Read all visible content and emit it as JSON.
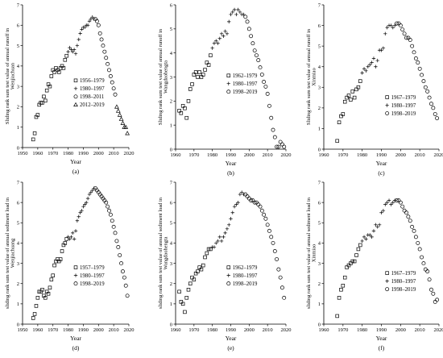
{
  "figure": {
    "panels": [
      {
        "id": "a",
        "letter": "(a)",
        "ylabel_lines": [
          "Sliding rank sum test  value of annual runoff in",
          "Wenjiachuan"
        ],
        "xlabel": "Year",
        "legend": [
          "1956–1979",
          "1980–1997",
          "1998–2011",
          "2012–2019"
        ]
      },
      {
        "id": "b",
        "letter": "(b)",
        "ylabel_lines": [
          "Sliding rank sum test  value of annual runoff in",
          "Wangdaohengta"
        ],
        "xlabel": "Year",
        "legend": [
          "1962–1979",
          "1980–1997",
          "1998–2019"
        ]
      },
      {
        "id": "c",
        "letter": "(c)",
        "ylabel_lines": [
          "Sliding rank sum test  value of annual runoff in",
          "Xinmiao"
        ],
        "xlabel": "Year",
        "legend": [
          "1967–1979",
          "1980–1997",
          "1998–2019"
        ]
      },
      {
        "id": "d",
        "letter": "(d)",
        "ylabel_lines": [
          "sliding rank sum test  value of annual sediment load in",
          "Wenjiachuang"
        ],
        "xlabel": "Year",
        "legend": [
          "1957–1979",
          "1980–1997",
          "1998–2019"
        ]
      },
      {
        "id": "e",
        "letter": "(e)",
        "ylabel_lines": [
          "sliding rank sum test  value of annual sediment load in",
          "Wangdaohengta"
        ],
        "xlabel": "Year",
        "legend": [
          "1962–1979",
          "1980–1997",
          "1998–2019"
        ]
      },
      {
        "id": "f",
        "letter": "(f)",
        "ylabel_lines": [
          "sliding rank sum test  value of annual sediment load in",
          "Xinmiao"
        ],
        "xlabel": "Year",
        "legend": [
          "1967–1979",
          "1980–1997",
          "1998–2019"
        ]
      }
    ]
  },
  "chart_data": [
    {
      "type": "scatter",
      "panel": "a",
      "xlim": [
        1950,
        2020
      ],
      "ylim": [
        0,
        7
      ],
      "xticks": [
        1950,
        1960,
        1970,
        1980,
        1990,
        2000,
        2010,
        2020
      ],
      "yticks": [
        0,
        1,
        2,
        3,
        4,
        5,
        6,
        7
      ],
      "legend_position": "right-middle",
      "series": [
        {
          "name": "1956–1979",
          "marker": "square",
          "x": [
            1957,
            1958,
            1959,
            1960,
            1961,
            1962,
            1963,
            1964,
            1965,
            1966,
            1967,
            1968,
            1969,
            1970,
            1971,
            1972,
            1973,
            1974,
            1975,
            1976,
            1977,
            1978,
            1979
          ],
          "y": [
            0.4,
            0.7,
            1.5,
            1.6,
            2.1,
            2.2,
            2.2,
            2.5,
            2.3,
            2.8,
            3.1,
            3.0,
            3.5,
            3.8,
            3.7,
            3.9,
            3.8,
            3.7,
            3.9,
            4.0,
            3.9,
            4.3,
            4.5
          ]
        },
        {
          "name": "1980–1997",
          "marker": "plus",
          "x": [
            1980,
            1981,
            1982,
            1983,
            1984,
            1985,
            1986,
            1987,
            1988,
            1989,
            1990,
            1991,
            1992,
            1993,
            1994,
            1995,
            1996,
            1997
          ],
          "y": [
            4.7,
            4.9,
            4.8,
            4.7,
            4.8,
            4.6,
            5.0,
            5.3,
            5.6,
            5.8,
            5.9,
            5.9,
            6.0,
            6.0,
            6.2,
            6.3,
            6.4,
            6.3
          ]
        },
        {
          "name": "1998–2011",
          "marker": "circle",
          "x": [
            1998,
            1999,
            2000,
            2001,
            2002,
            2003,
            2004,
            2005,
            2006,
            2007,
            2008,
            2009,
            2010,
            2011
          ],
          "y": [
            6.3,
            6.2,
            6.0,
            5.6,
            5.3,
            5.0,
            4.7,
            4.4,
            4.1,
            3.8,
            3.5,
            3.2,
            2.9,
            2.6
          ]
        },
        {
          "name": "2012–2019",
          "marker": "triangle",
          "x": [
            2012,
            2013,
            2014,
            2015,
            2016,
            2017,
            2018,
            2019
          ],
          "y": [
            2.0,
            1.8,
            1.6,
            1.4,
            1.2,
            1.0,
            1.0,
            0.7
          ]
        }
      ]
    },
    {
      "type": "scatter",
      "panel": "b",
      "xlim": [
        1960,
        2020
      ],
      "ylim": [
        0,
        6
      ],
      "xticks": [
        1960,
        1970,
        1980,
        1990,
        2000,
        2010,
        2020
      ],
      "yticks": [
        0,
        1,
        2,
        3,
        4,
        5,
        6
      ],
      "legend_position": "right-middle",
      "series": [
        {
          "name": "1962–1979",
          "marker": "square",
          "x": [
            1962,
            1963,
            1964,
            1965,
            1966,
            1967,
            1968,
            1969,
            1970,
            1971,
            1972,
            1973,
            1974,
            1975,
            1976,
            1977,
            1978,
            1979
          ],
          "y": [
            1.6,
            1.5,
            1.8,
            1.7,
            1.3,
            2.0,
            2.5,
            2.7,
            3.1,
            3.2,
            3.0,
            3.2,
            3.0,
            3.1,
            3.3,
            3.6,
            3.5,
            3.9
          ]
        },
        {
          "name": "1980–1997",
          "marker": "plus",
          "x": [
            1980,
            1981,
            1982,
            1983,
            1984,
            1985,
            1986,
            1987,
            1988,
            1989,
            1990,
            1991,
            1992,
            1993,
            1994,
            1995,
            1996,
            1997
          ],
          "y": [
            4.2,
            4.4,
            4.5,
            4.4,
            4.6,
            4.8,
            4.7,
            4.9,
            4.8,
            5.3,
            5.6,
            5.7,
            5.8,
            5.6,
            5.8,
            5.7,
            5.6,
            5.6
          ]
        },
        {
          "name": "1998–2019",
          "marker": "circle",
          "x": [
            1998,
            1999,
            2000,
            2001,
            2002,
            2003,
            2004,
            2005,
            2006,
            2007,
            2008,
            2009,
            2010,
            2011,
            2012,
            2013,
            2014,
            2015,
            2016,
            2017,
            2018,
            2019
          ],
          "y": [
            5.5,
            5.3,
            5.0,
            4.7,
            4.4,
            4.1,
            3.9,
            3.7,
            3.4,
            3.1,
            2.8,
            2.6,
            2.3,
            1.8,
            1.3,
            0.8,
            0.5,
            0.1,
            0.1,
            0.3,
            0.2,
            0.1
          ]
        }
      ]
    },
    {
      "type": "scatter",
      "panel": "c",
      "xlim": [
        1960,
        2020
      ],
      "ylim": [
        0,
        7
      ],
      "xticks": [
        1960,
        1970,
        1980,
        1990,
        2000,
        2010,
        2020
      ],
      "yticks": [
        0,
        1,
        2,
        3,
        4,
        5,
        6,
        7
      ],
      "legend_position": "right-middle",
      "series": [
        {
          "name": "1967–1979",
          "marker": "square",
          "x": [
            1967,
            1968,
            1969,
            1970,
            1971,
            1972,
            1973,
            1974,
            1975,
            1976,
            1977,
            1978,
            1979
          ],
          "y": [
            0.4,
            1.3,
            1.6,
            1.7,
            2.3,
            2.5,
            2.6,
            2.4,
            2.8,
            2.5,
            2.9,
            3.0,
            3.3
          ]
        },
        {
          "name": "1980–1997",
          "marker": "plus",
          "x": [
            1980,
            1981,
            1982,
            1983,
            1984,
            1985,
            1986,
            1987,
            1988,
            1989,
            1990,
            1991,
            1992,
            1993,
            1994,
            1995,
            1996,
            1997
          ],
          "y": [
            3.7,
            3.9,
            3.8,
            4.0,
            4.1,
            4.2,
            4.4,
            4.0,
            4.3,
            4.8,
            4.8,
            4.9,
            5.6,
            5.9,
            6.0,
            6.0,
            5.9,
            6.0
          ]
        },
        {
          "name": "1998–2019",
          "marker": "circle",
          "x": [
            1998,
            1999,
            2000,
            2001,
            2002,
            2003,
            2004,
            2005,
            2006,
            2007,
            2008,
            2009,
            2010,
            2011,
            2012,
            2013,
            2014,
            2015,
            2016,
            2017,
            2018,
            2019
          ],
          "y": [
            6.1,
            6.1,
            6.0,
            5.8,
            5.6,
            5.4,
            5.4,
            5.3,
            5.0,
            4.7,
            4.4,
            4.2,
            3.9,
            3.6,
            3.3,
            3.0,
            2.8,
            2.5,
            2.2,
            2.0,
            1.7,
            1.5
          ]
        }
      ]
    },
    {
      "type": "scatter",
      "panel": "d",
      "xlim": [
        1950,
        2020
      ],
      "ylim": [
        0,
        7
      ],
      "xticks": [
        1950,
        1960,
        1970,
        1980,
        1990,
        2000,
        2010,
        2020
      ],
      "yticks": [
        0,
        1,
        2,
        3,
        4,
        5,
        6,
        7
      ],
      "legend_position": "right-middle",
      "series": [
        {
          "name": "1957–1979",
          "marker": "square",
          "x": [
            1957,
            1958,
            1959,
            1960,
            1961,
            1962,
            1963,
            1964,
            1965,
            1966,
            1967,
            1968,
            1969,
            1970,
            1971,
            1972,
            1973,
            1974,
            1975,
            1976,
            1977,
            1978,
            1979
          ],
          "y": [
            0.3,
            0.5,
            0.9,
            1.3,
            1.6,
            1.6,
            1.7,
            1.4,
            1.3,
            1.6,
            1.5,
            1.8,
            2.2,
            2.4,
            2.9,
            3.1,
            3.2,
            3.1,
            3.2,
            3.6,
            3.9,
            4.0,
            4.2
          ]
        },
        {
          "name": "1980–1997",
          "marker": "plus",
          "x": [
            1980,
            1981,
            1982,
            1983,
            1984,
            1985,
            1986,
            1987,
            1988,
            1989,
            1990,
            1991,
            1992,
            1993,
            1994,
            1995,
            1996,
            1997
          ],
          "y": [
            4.3,
            4.2,
            4.3,
            4.5,
            4.2,
            4.6,
            5.1,
            5.3,
            5.5,
            5.6,
            5.8,
            5.9,
            6.0,
            6.2,
            6.4,
            6.5,
            6.6,
            6.7
          ]
        },
        {
          "name": "1998–2019",
          "marker": "circle",
          "x": [
            1998,
            1999,
            2000,
            2001,
            2002,
            2003,
            2004,
            2005,
            2006,
            2007,
            2008,
            2009,
            2010,
            2011,
            2012,
            2013,
            2014,
            2015,
            2016,
            2017,
            2018,
            2019
          ],
          "y": [
            6.7,
            6.6,
            6.5,
            6.4,
            6.3,
            6.2,
            6.1,
            6.0,
            5.8,
            5.6,
            5.4,
            5.1,
            4.8,
            4.5,
            4.1,
            3.8,
            3.4,
            3.0,
            2.6,
            2.3,
            1.9,
            1.4
          ]
        }
      ]
    },
    {
      "type": "scatter",
      "panel": "e",
      "xlim": [
        1960,
        2020
      ],
      "ylim": [
        0,
        7
      ],
      "xticks": [
        1960,
        1970,
        1980,
        1990,
        2000,
        2010,
        2020
      ],
      "yticks": [
        0,
        1,
        2,
        3,
        4,
        5,
        6,
        7
      ],
      "legend_position": "right-middle",
      "series": [
        {
          "name": "1962–1979",
          "marker": "square",
          "x": [
            1962,
            1963,
            1964,
            1965,
            1966,
            1967,
            1968,
            1969,
            1970,
            1971,
            1972,
            1973,
            1974,
            1975,
            1976,
            1977,
            1978,
            1979
          ],
          "y": [
            1.6,
            1.1,
            1.0,
            0.6,
            1.3,
            1.7,
            2.0,
            2.3,
            2.2,
            2.5,
            2.6,
            2.8,
            2.7,
            2.9,
            3.3,
            3.5,
            3.7,
            3.7
          ]
        },
        {
          "name": "1980–1997",
          "marker": "plus",
          "x": [
            1980,
            1981,
            1982,
            1983,
            1984,
            1985,
            1986,
            1987,
            1988,
            1989,
            1990,
            1991,
            1992,
            1993,
            1994,
            1995,
            1996,
            1997
          ],
          "y": [
            3.8,
            3.8,
            4.0,
            4.1,
            4.3,
            4.1,
            4.3,
            4.5,
            4.7,
            4.9,
            5.2,
            5.5,
            5.8,
            5.9,
            6.0,
            6.4,
            6.5,
            6.4
          ]
        },
        {
          "name": "1998–2019",
          "marker": "circle",
          "x": [
            1998,
            1999,
            2000,
            2001,
            2002,
            2003,
            2004,
            2005,
            2006,
            2007,
            2008,
            2009,
            2010,
            2011,
            2012,
            2013,
            2014,
            2015,
            2016,
            2017,
            2018,
            2019
          ],
          "y": [
            6.4,
            6.3,
            6.2,
            6.1,
            6.1,
            6.0,
            6.0,
            5.9,
            5.8,
            5.6,
            5.4,
            5.2,
            4.9,
            4.6,
            4.3,
            4.0,
            3.6,
            3.2,
            2.7,
            2.3,
            1.8,
            1.3
          ]
        }
      ]
    },
    {
      "type": "scatter",
      "panel": "f",
      "xlim": [
        1960,
        2020
      ],
      "ylim": [
        0,
        7
      ],
      "xticks": [
        1960,
        1970,
        1980,
        1990,
        2000,
        2010,
        2020
      ],
      "yticks": [
        0,
        1,
        2,
        3,
        4,
        5,
        6,
        7
      ],
      "legend_position": "right-middle",
      "series": [
        {
          "name": "1967–1979",
          "marker": "square",
          "x": [
            1967,
            1968,
            1969,
            1970,
            1971,
            1972,
            1973,
            1974,
            1975,
            1976,
            1977,
            1978,
            1979
          ],
          "y": [
            0.4,
            1.3,
            1.7,
            1.9,
            2.3,
            2.8,
            2.9,
            3.0,
            3.1,
            3.1,
            3.4,
            3.7,
            3.9
          ]
        },
        {
          "name": "1980–1997",
          "marker": "plus",
          "x": [
            1980,
            1981,
            1982,
            1983,
            1984,
            1985,
            1986,
            1987,
            1988,
            1989,
            1990,
            1991,
            1992,
            1993,
            1994,
            1995,
            1996,
            1997
          ],
          "y": [
            4.1,
            4.3,
            4.2,
            4.4,
            4.4,
            4.3,
            4.6,
            4.9,
            4.8,
            4.9,
            5.5,
            5.6,
            5.9,
            6.0,
            6.1,
            5.9,
            6.0,
            6.1
          ]
        },
        {
          "name": "1998–2019",
          "marker": "circle",
          "x": [
            1998,
            1999,
            2000,
            2001,
            2002,
            2003,
            2004,
            2005,
            2006,
            2007,
            2008,
            2009,
            2010,
            2011,
            2012,
            2013,
            2014,
            2015,
            2016,
            2017,
            2018,
            2019
          ],
          "y": [
            6.1,
            6.1,
            6.0,
            5.8,
            5.6,
            5.5,
            5.3,
            5.1,
            4.8,
            4.6,
            4.3,
            4.0,
            3.7,
            3.3,
            3.0,
            2.7,
            2.6,
            2.2,
            1.7,
            1.5,
            1.1,
            1.2
          ]
        }
      ]
    }
  ]
}
